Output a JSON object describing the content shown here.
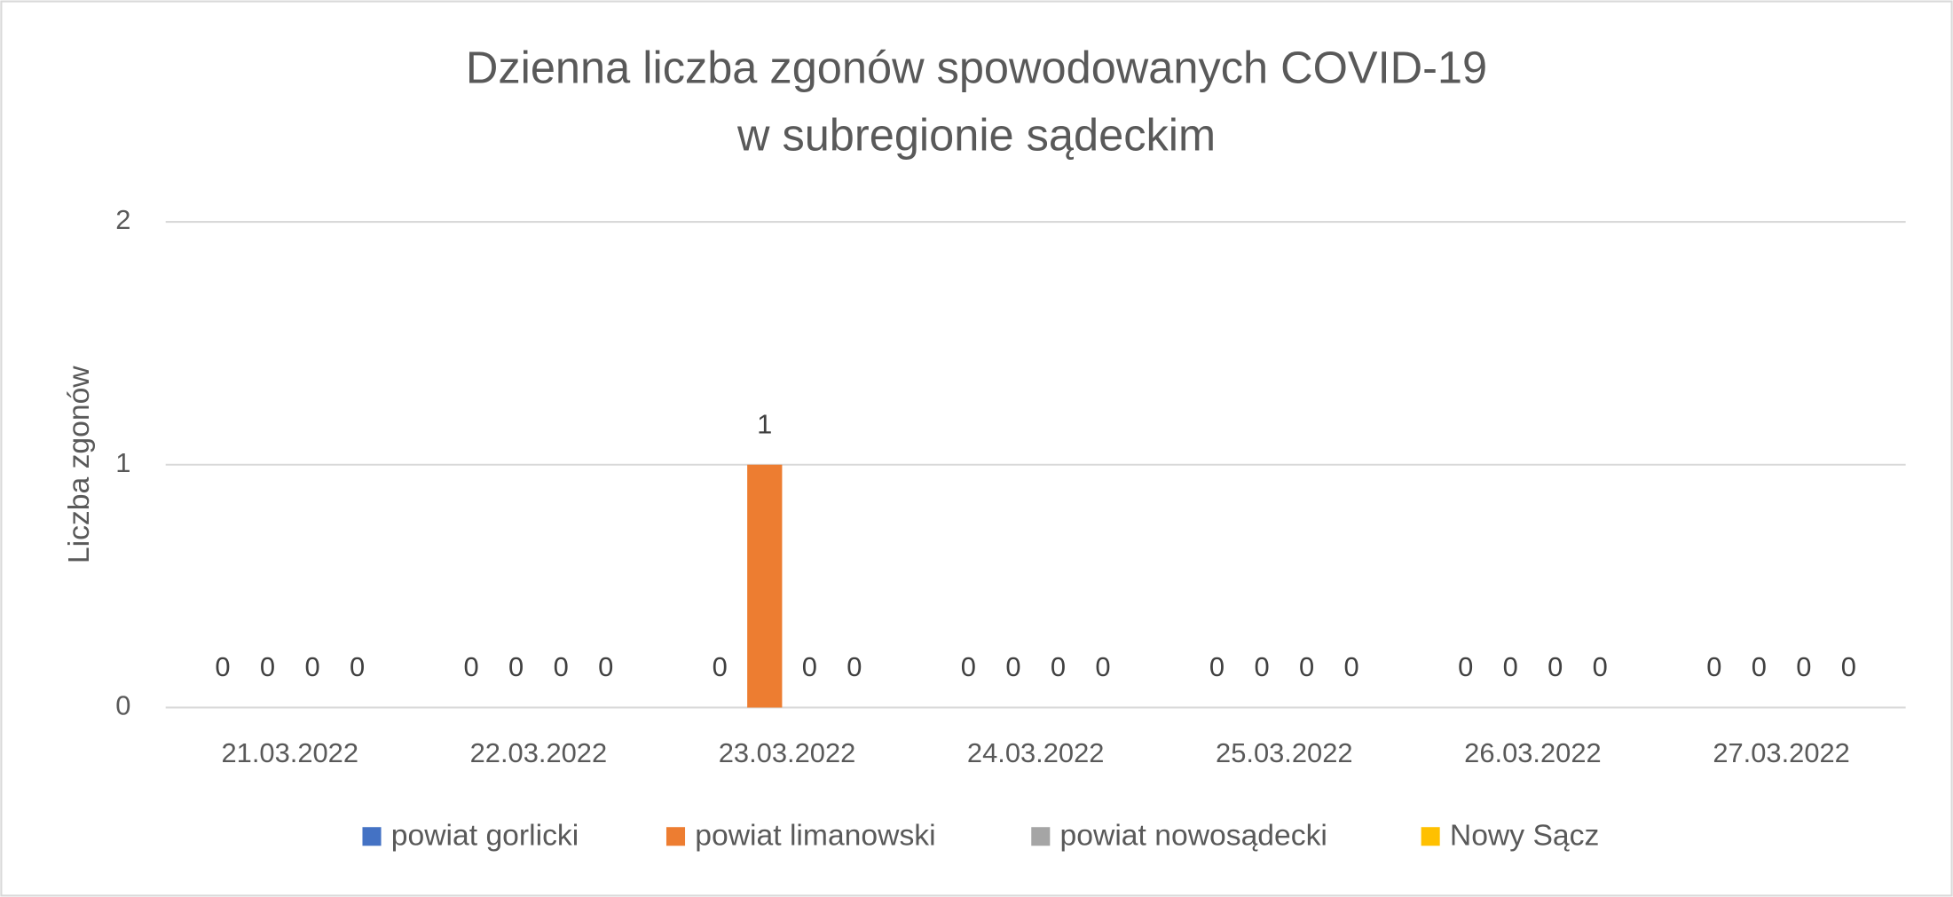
{
  "chart_data": {
    "type": "bar",
    "title": [
      "Dzienna liczba zgonów spowodowanych COVID-19",
      "w subregionie sądeckim"
    ],
    "y_label": "Liczba zgonów",
    "categories": [
      "21.03.2022",
      "22.03.2022",
      "23.03.2022",
      "24.03.2022",
      "25.03.2022",
      "26.03.2022",
      "27.03.2022"
    ],
    "series": [
      {
        "name": "powiat gorlicki",
        "color": "#4472c4",
        "values": [
          0,
          0,
          0,
          0,
          0,
          0,
          0
        ]
      },
      {
        "name": "powiat limanowski",
        "color": "#ed7d31",
        "values": [
          0,
          0,
          1,
          0,
          0,
          0,
          0
        ]
      },
      {
        "name": "powiat nowosądecki",
        "color": "#a5a5a5",
        "values": [
          0,
          0,
          0,
          0,
          0,
          0,
          0
        ]
      },
      {
        "name": "Nowy Sącz",
        "color": "#ffc000",
        "values": [
          0,
          0,
          0,
          0,
          0,
          0,
          0
        ]
      }
    ],
    "ylim": [
      0,
      2
    ],
    "yticks": [
      0,
      1,
      2
    ],
    "grid": true,
    "legend": "bottom",
    "data_labels": true
  }
}
